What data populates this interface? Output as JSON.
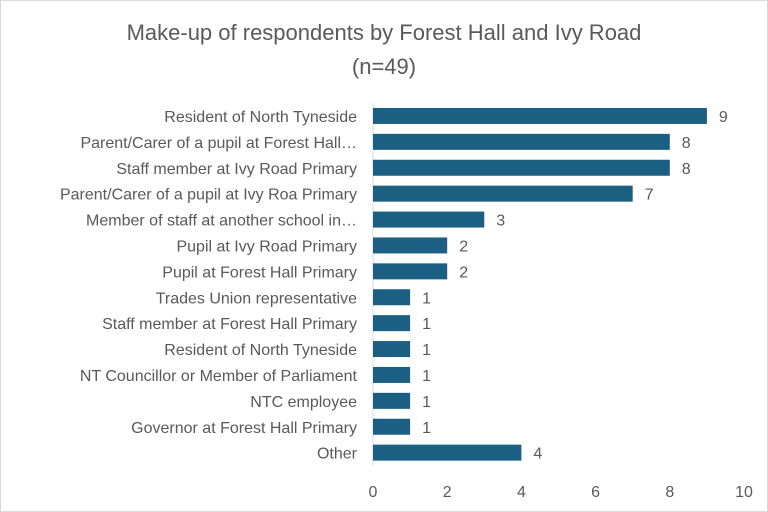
{
  "chart_data": {
    "type": "bar",
    "orientation": "horizontal",
    "title": "Make-up of respondents by Forest Hall and Ivy Road",
    "subtitle": "(n=49)",
    "categories": [
      "Resident of North Tyneside",
      "Parent/Carer of a pupil at Forest Hall…",
      "Staff member at Ivy Road Primary",
      "Parent/Carer of a pupil at Ivy Roa Primary",
      "Member of staff at another school in…",
      "Pupil at Ivy Road Primary",
      "Pupil at Forest Hall Primary",
      "Trades Union representative",
      "Staff member at Forest Hall Primary",
      "Resident of North Tyneside",
      "NT Councillor or Member of Parliament",
      "NTC employee",
      "Governor at Forest Hall Primary",
      "Other"
    ],
    "values": [
      9,
      8,
      8,
      7,
      3,
      2,
      2,
      1,
      1,
      1,
      1,
      1,
      1,
      4
    ],
    "xlim": [
      0,
      10
    ],
    "xticks": [
      "0",
      "2",
      "4",
      "6",
      "8",
      "10"
    ],
    "xlabel": "",
    "ylabel": "",
    "grid": false,
    "legend": "none",
    "data_labels": true,
    "bar_color": "#1b6083"
  }
}
